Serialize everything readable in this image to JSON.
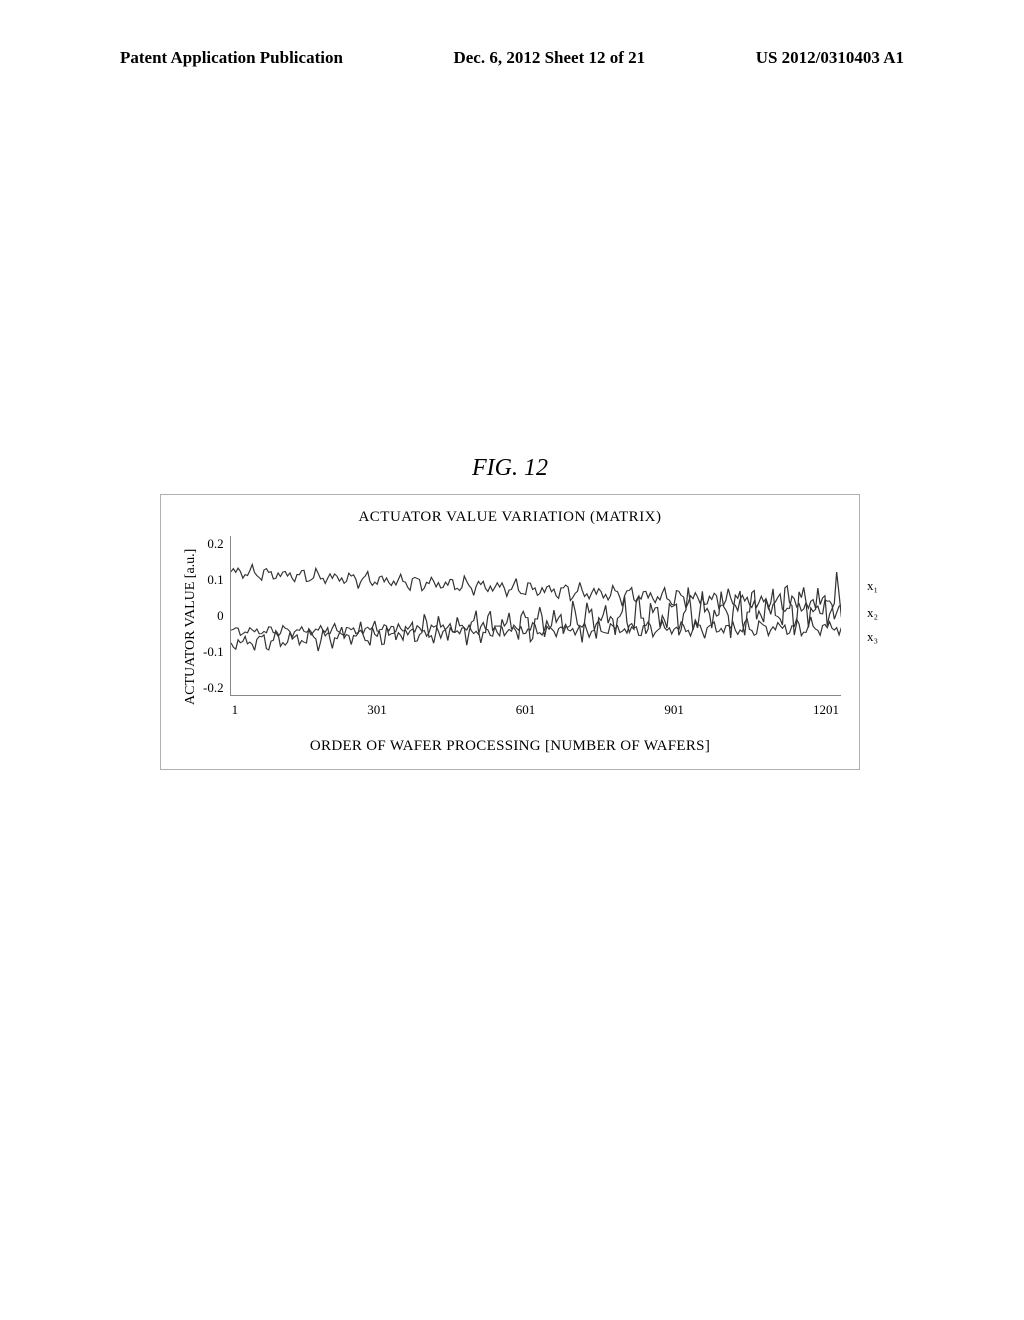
{
  "header": {
    "left": "Patent Application Publication",
    "center": "Dec. 6, 2012  Sheet 12 of 21",
    "right": "US 2012/0310403 A1"
  },
  "figure": {
    "label": "FIG.  12",
    "chart": {
      "type": "line",
      "title": "ACTUATOR VALUE VARIATION (MATRIX)",
      "ylabel": "ACTUATOR VALUE [a.u.]",
      "xlabel": "ORDER OF WAFER PROCESSING [NUMBER OF WAFERS]",
      "ylim": [
        -0.2,
        0.2
      ],
      "yticks": [
        "0.2",
        "0.1",
        "0",
        "-0.1",
        "-0.2"
      ],
      "xticks": [
        "1",
        "301",
        "601",
        "901",
        "1201"
      ],
      "x_range": [
        1,
        1300
      ],
      "series": [
        {
          "name": "x1",
          "label": "x₁",
          "label_y_pct": 26,
          "color": "#333333",
          "trend_start": 0.11,
          "trend_end": 0.02,
          "noise_amp": 0.02,
          "noise_growth": 0.5
        },
        {
          "name": "x2",
          "label": "x₂",
          "label_y_pct": 43,
          "color": "#333333",
          "trend_start": -0.07,
          "trend_end": 0.03,
          "noise_amp": 0.025,
          "noise_growth": 2.2
        },
        {
          "name": "x3",
          "label": "x₃",
          "label_y_pct": 58,
          "color": "#333333",
          "trend_start": -0.04,
          "trend_end": -0.03,
          "noise_amp": 0.015,
          "noise_growth": 0.8
        }
      ],
      "background_color": "#ffffff",
      "axis_color": "#888888",
      "label_fontsize": 14,
      "tick_fontsize": 13,
      "title_fontsize": 15
    }
  }
}
